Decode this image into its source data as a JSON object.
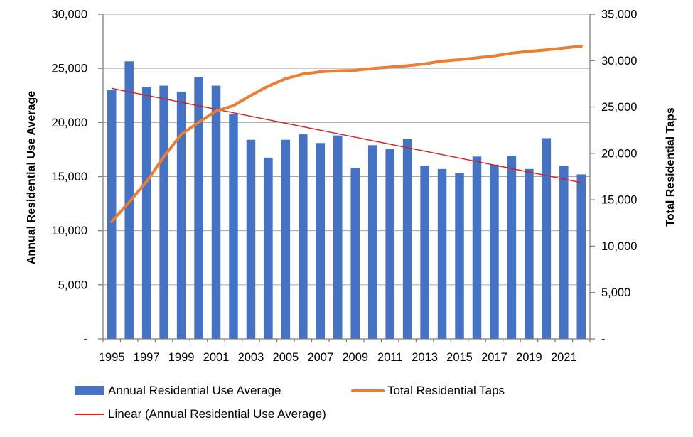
{
  "chart_data": {
    "type": "bar",
    "subtype": "combo-bar-line-dual-axis",
    "title": "",
    "categories": [
      1995,
      1996,
      1997,
      1998,
      1999,
      2000,
      2001,
      2002,
      2003,
      2004,
      2005,
      2006,
      2007,
      2008,
      2009,
      2010,
      2011,
      2012,
      2013,
      2014,
      2015,
      2016,
      2017,
      2018,
      2019,
      2020,
      2021,
      2022
    ],
    "x_tick_labels": [
      "1995",
      "1997",
      "1999",
      "2001",
      "2003",
      "2005",
      "2007",
      "2009",
      "2011",
      "2013",
      "2015",
      "2017",
      "2019",
      "2021"
    ],
    "series": [
      {
        "name": "Annual Residential Use Average",
        "type": "bar",
        "axis": "left",
        "color": "#4472C4",
        "values": [
          23000,
          25650,
          23300,
          23400,
          22850,
          24200,
          23400,
          20800,
          18400,
          16750,
          18400,
          18900,
          18100,
          18800,
          15800,
          17900,
          17550,
          18500,
          16000,
          15700,
          15300,
          16850,
          16100,
          16900,
          15700,
          18550,
          16000,
          15200
        ]
      },
      {
        "name": "Total Residential Taps",
        "type": "line",
        "axis": "right",
        "color": "#ED7D31",
        "values": [
          12650,
          14750,
          16950,
          19650,
          22050,
          23350,
          24550,
          25150,
          26250,
          27250,
          28050,
          28550,
          28800,
          28900,
          28950,
          29150,
          29300,
          29450,
          29650,
          29950,
          30100,
          30300,
          30500,
          30800,
          31000,
          31150,
          31350,
          31550
        ]
      },
      {
        "name": "Linear (Annual Residential Use Average)",
        "type": "trendline",
        "axis": "left",
        "color": "#E01A1A",
        "start_value": 23150,
        "end_value": 14450
      }
    ],
    "left_axis": {
      "title": "Annual Residential Use Average",
      "min": 0,
      "max": 30000,
      "tick_interval": 5000,
      "tick_labels": [
        "-",
        "5,000",
        "10,000",
        "15,000",
        "20,000",
        "25,000",
        "30,000"
      ]
    },
    "right_axis": {
      "title": "Total Residential Taps",
      "min": 0,
      "max": 35000,
      "tick_interval": 5000,
      "tick_labels": [
        "-",
        "5,000",
        "10,000",
        "15,000",
        "20,000",
        "25,000",
        "30,000",
        "35,000"
      ]
    },
    "grid": true,
    "gridline_color": "#A6A6A6",
    "axis_line_color": "#7F7F7F",
    "legend_position": "bottom"
  }
}
